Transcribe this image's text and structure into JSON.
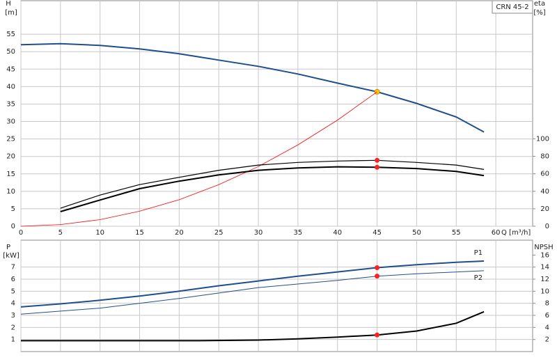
{
  "chart_data": [
    {
      "type": "line",
      "title": "CRN 45-2",
      "xlabel": "Q [m³/h]",
      "ylabel": "H",
      "yunit": "[m]",
      "y2label": "eta",
      "y2unit": "[%]",
      "xlim": [
        0,
        64.65
      ],
      "xticks": [
        0,
        5,
        10,
        15,
        20,
        25,
        30,
        35,
        40,
        45,
        50,
        55,
        60
      ],
      "ylim": [
        0,
        64.6
      ],
      "yticks": [
        0,
        5,
        10,
        15,
        20,
        25,
        30,
        35,
        40,
        45,
        50,
        55
      ],
      "y2lim": [
        0,
        258
      ],
      "y2ticks": [
        0,
        20,
        40,
        60,
        80,
        100
      ],
      "grid": true,
      "series": [
        {
          "color": "#1f4e8c",
          "width": 2,
          "x": [
            0,
            5,
            10,
            15,
            20,
            22.5,
            25,
            30,
            35,
            40,
            45,
            50,
            55,
            58.5
          ],
          "values": [
            52,
            52.3,
            51.8,
            50.8,
            49.4,
            48.5,
            47.6,
            45.8,
            43.6,
            41,
            38.5,
            35.2,
            31.3,
            27
          ],
          "marker": {
            "x": 45,
            "value": 38.5,
            "color": "#ffcc00"
          }
        },
        {
          "color": "#ff0000",
          "width": 0.8,
          "x": [
            0,
            5,
            10,
            15,
            20,
            25,
            30,
            35,
            40,
            45
          ],
          "values": [
            0,
            0.48,
            1.9,
            4.3,
            7.6,
            11.9,
            17.1,
            23.3,
            30.4,
            38.5
          ]
        },
        {
          "color": "#000000",
          "width": 1.2,
          "axis": "y2",
          "x": [
            5,
            10,
            15,
            20,
            25,
            30,
            35,
            40,
            45,
            50,
            55,
            58.5
          ],
          "values": [
            20.6,
            35.7,
            47.6,
            56,
            64,
            70,
            73,
            74.6,
            75.4,
            73,
            70,
            65
          ],
          "marker": {
            "x": 45,
            "value": 75.4,
            "color": "#ff2020"
          }
        },
        {
          "color": "#000000",
          "width": 2,
          "axis": "y2",
          "x": [
            5,
            10,
            15,
            20,
            25,
            30,
            35,
            40,
            45,
            50,
            55,
            58.5
          ],
          "values": [
            16.7,
            30,
            43,
            51.6,
            58.7,
            64,
            66.7,
            68,
            67.5,
            66,
            62.7,
            58
          ],
          "marker": {
            "x": 45,
            "value": 67.5,
            "color": "#ff2020"
          }
        }
      ]
    },
    {
      "type": "line",
      "ylabel": "P",
      "yunit": "[kW]",
      "y2label": "NPSH",
      "xlim": [
        0,
        64.65
      ],
      "xticks": [
        0,
        5,
        10,
        15,
        20,
        25,
        30,
        35,
        40,
        45,
        50,
        55,
        60
      ],
      "ylim": [
        0,
        9.23
      ],
      "yticks": [
        1,
        2,
        3,
        4,
        5,
        6,
        7
      ],
      "y2lim": [
        0,
        18.46
      ],
      "y2ticks": [
        2,
        4,
        6,
        8,
        10,
        12,
        14,
        16
      ],
      "grid": true,
      "series": [
        {
          "name": "P1",
          "color": "#1f4e8c",
          "width": 2,
          "x": [
            0,
            5,
            10,
            15,
            20,
            25,
            30,
            35,
            40,
            45,
            50,
            55,
            58.5
          ],
          "values": [
            3.7,
            3.95,
            4.25,
            4.6,
            5.0,
            5.45,
            5.85,
            6.25,
            6.6,
            6.95,
            7.2,
            7.4,
            7.5
          ],
          "marker": {
            "x": 45,
            "value": 6.95,
            "color": "#ff2020"
          }
        },
        {
          "name": "P2",
          "color": "#1f4e8c",
          "width": 1,
          "x": [
            0,
            10,
            20,
            30,
            40,
            45,
            50,
            58.5
          ],
          "values": [
            3.1,
            3.6,
            4.4,
            5.3,
            5.9,
            6.25,
            6.45,
            6.7
          ],
          "marker": {
            "x": 45,
            "value": 6.25,
            "color": "#ff2020"
          }
        },
        {
          "color": "#000000",
          "width": 2,
          "axis": "y2",
          "x": [
            0,
            22.5,
            30,
            35,
            40,
            45,
            50,
            55,
            58.5
          ],
          "values": [
            1.8,
            1.8,
            1.9,
            2.1,
            2.4,
            2.75,
            3.4,
            4.7,
            6.6
          ],
          "marker": {
            "x": 45,
            "value": 2.75,
            "color": "#ff2020"
          }
        }
      ]
    }
  ]
}
